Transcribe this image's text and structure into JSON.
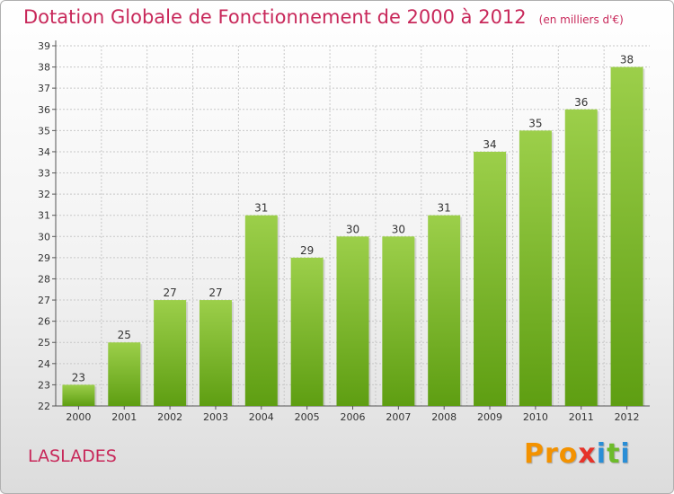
{
  "header": {
    "title": "Dotation Globale de Fonctionnement de 2000 à 2012",
    "subtitle": "(en milliers d'€)"
  },
  "commune": "LASLADES",
  "brand": {
    "text": "Proxiti",
    "colors": [
      "#f39200",
      "#2a8ed6",
      "#e6332a",
      "#6dbb2a"
    ]
  },
  "colors": {
    "title": "#c8285a",
    "bar_top": "#9ccf4a",
    "bar_bottom": "#5e9e12",
    "grid": "#c8c8c8"
  },
  "chart_data": {
    "type": "bar",
    "title": "Dotation Globale de Fonctionnement de 2000 à 2012",
    "subtitle": "(en milliers d'€)",
    "xlabel": "",
    "ylabel": "",
    "categories": [
      "2000",
      "2001",
      "2002",
      "2003",
      "2004",
      "2005",
      "2006",
      "2007",
      "2008",
      "2009",
      "2010",
      "2011",
      "2012"
    ],
    "values": [
      23,
      25,
      27,
      27,
      31,
      29,
      30,
      30,
      31,
      34,
      35,
      36,
      38
    ],
    "ylim": [
      22,
      39
    ],
    "yticks": [
      22,
      23,
      24,
      25,
      26,
      27,
      28,
      29,
      30,
      31,
      32,
      33,
      34,
      35,
      36,
      37,
      38,
      39
    ],
    "grid": true,
    "data_labels": true,
    "legend": "none"
  }
}
